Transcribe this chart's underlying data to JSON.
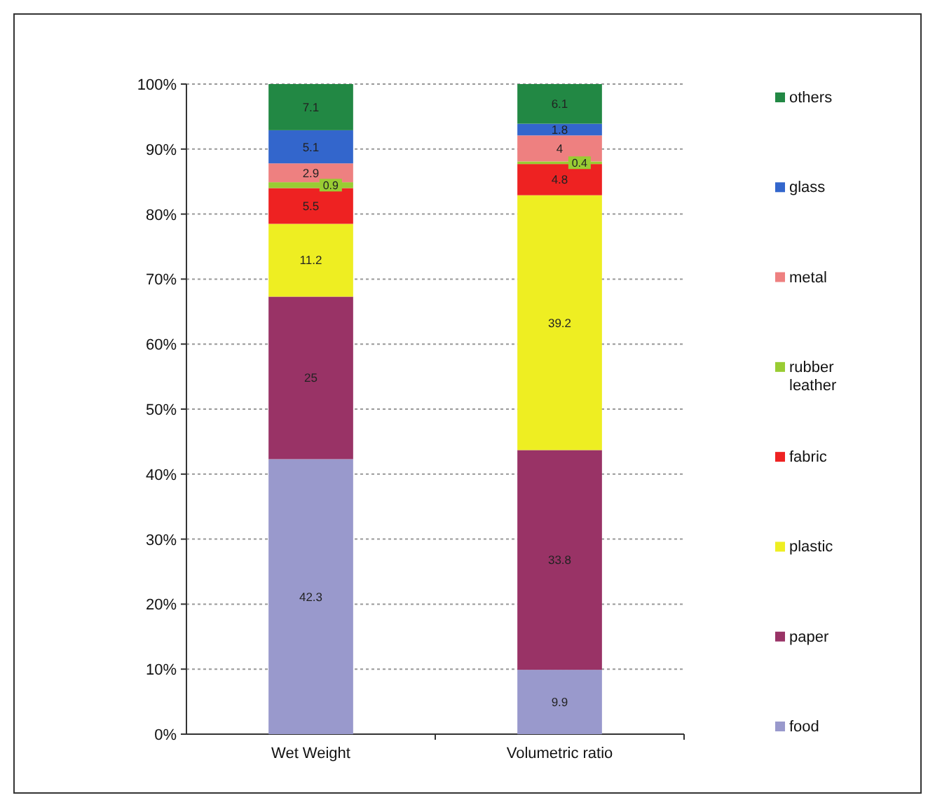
{
  "chart_data": {
    "type": "bar",
    "stacked": true,
    "categories": [
      "Wet Weight",
      "Volumetric ratio"
    ],
    "series": [
      {
        "name": "food",
        "color": "#9999cc",
        "values": [
          42.3,
          9.9
        ]
      },
      {
        "name": "paper",
        "color": "#993366",
        "values": [
          25,
          33.8
        ]
      },
      {
        "name": "plastic",
        "color": "#eeee22",
        "values": [
          11.2,
          39.2
        ]
      },
      {
        "name": "fabric",
        "color": "#ee2222",
        "values": [
          5.5,
          4.8
        ]
      },
      {
        "name": "rubber leather",
        "color": "#99cc33",
        "values": [
          0.9,
          0.4
        ]
      },
      {
        "name": "metal",
        "color": "#ee8080",
        "values": [
          2.9,
          4
        ]
      },
      {
        "name": "glass",
        "color": "#3366cc",
        "values": [
          5.1,
          1.8
        ]
      },
      {
        "name": "others",
        "color": "#228844",
        "values": [
          7.1,
          6.1
        ]
      }
    ],
    "ylim": [
      0,
      100
    ],
    "yticks": [
      {
        "value": 0,
        "label": "0%"
      },
      {
        "value": 10,
        "label": "10%"
      },
      {
        "value": 20,
        "label": "20%"
      },
      {
        "value": 30,
        "label": "30%"
      },
      {
        "value": 40,
        "label": "40%"
      },
      {
        "value": 50,
        "label": "50%"
      },
      {
        "value": 60,
        "label": "60%"
      },
      {
        "value": 70,
        "label": "70%"
      },
      {
        "value": 80,
        "label": "80%"
      },
      {
        "value": 90,
        "label": "90%"
      },
      {
        "value": 100,
        "label": "100%"
      }
    ],
    "grid": "y",
    "legend": "right",
    "data_labels": true
  }
}
